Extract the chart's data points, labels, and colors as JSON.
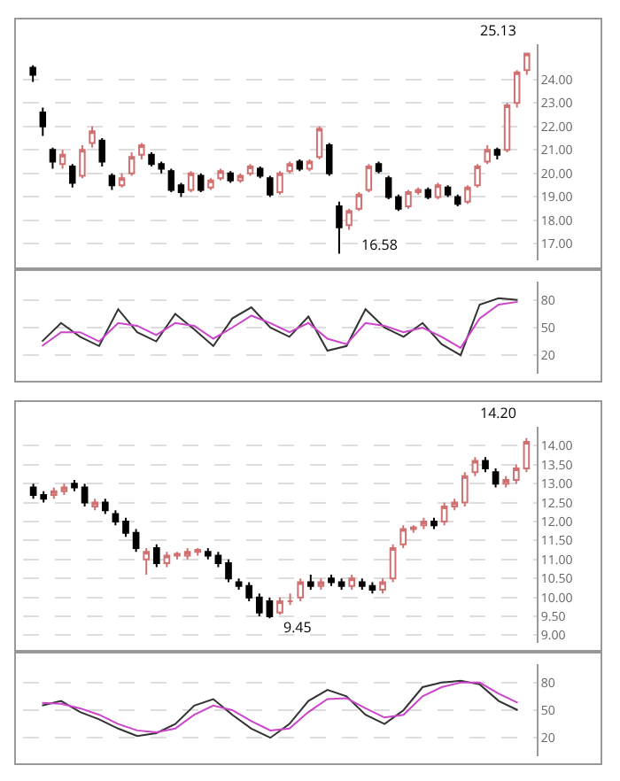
{
  "chart_data": [
    {
      "type": "candlestick",
      "categories": [
        null,
        null,
        null,
        null,
        null,
        null,
        null,
        null,
        null,
        null,
        null,
        null,
        null,
        null,
        null,
        null,
        null,
        null,
        null,
        null,
        null,
        null,
        null,
        null,
        null,
        null,
        null,
        null,
        null,
        null,
        null,
        null,
        null,
        null,
        null,
        null,
        null,
        null,
        null,
        null,
        null,
        null,
        null,
        null,
        null,
        null,
        null,
        null,
        null,
        null,
        null
      ],
      "ohlc": [
        [
          24.5,
          24.6,
          23.9,
          24.2
        ],
        [
          22.6,
          22.8,
          21.6,
          22.0
        ],
        [
          21.0,
          21.1,
          20.2,
          20.5
        ],
        [
          20.4,
          21.0,
          20.2,
          20.8
        ],
        [
          20.3,
          20.4,
          19.4,
          19.6
        ],
        [
          19.9,
          21.2,
          19.8,
          21.0
        ],
        [
          21.3,
          22.0,
          21.1,
          21.8
        ],
        [
          21.4,
          21.5,
          20.3,
          20.5
        ],
        [
          19.9,
          20.0,
          19.3,
          19.5
        ],
        [
          19.5,
          20.0,
          19.4,
          19.8
        ],
        [
          20.0,
          20.9,
          19.9,
          20.7
        ],
        [
          20.8,
          21.3,
          20.6,
          21.2
        ],
        [
          20.8,
          20.9,
          20.3,
          20.4
        ],
        [
          20.4,
          20.5,
          20.0,
          20.2
        ],
        [
          20.1,
          20.2,
          19.2,
          19.3
        ],
        [
          19.5,
          19.6,
          19.0,
          19.2
        ],
        [
          19.3,
          20.1,
          19.2,
          20.0
        ],
        [
          19.9,
          20.0,
          19.2,
          19.3
        ],
        [
          19.4,
          19.8,
          19.3,
          19.7
        ],
        [
          19.8,
          20.2,
          19.7,
          20.1
        ],
        [
          20.0,
          20.1,
          19.6,
          19.7
        ],
        [
          19.7,
          20.0,
          19.6,
          19.9
        ],
        [
          20.0,
          20.4,
          19.9,
          20.3
        ],
        [
          20.2,
          20.3,
          19.8,
          19.9
        ],
        [
          19.8,
          19.9,
          19.0,
          19.1
        ],
        [
          19.2,
          20.1,
          19.1,
          20.0
        ],
        [
          20.1,
          20.5,
          20.0,
          20.4
        ],
        [
          20.5,
          20.6,
          20.1,
          20.2
        ],
        [
          20.2,
          20.6,
          20.1,
          20.5
        ],
        [
          20.7,
          22.0,
          20.6,
          21.9
        ],
        [
          21.2,
          21.3,
          19.9,
          20.0
        ],
        [
          18.6,
          18.8,
          16.58,
          17.7
        ],
        [
          17.8,
          18.5,
          17.6,
          18.4
        ],
        [
          18.5,
          19.2,
          18.4,
          19.1
        ],
        [
          19.3,
          20.4,
          19.2,
          20.3
        ],
        [
          20.4,
          20.5,
          20.0,
          20.1
        ],
        [
          19.8,
          19.9,
          18.9,
          19.0
        ],
        [
          19.0,
          19.1,
          18.4,
          18.5
        ],
        [
          18.6,
          19.3,
          18.5,
          19.2
        ],
        [
          19.2,
          19.4,
          19.1,
          19.3
        ],
        [
          19.3,
          19.4,
          18.9,
          19.0
        ],
        [
          19.0,
          19.6,
          18.9,
          19.5
        ],
        [
          19.4,
          19.5,
          19.0,
          19.1
        ],
        [
          19.0,
          19.1,
          18.6,
          18.7
        ],
        [
          18.8,
          19.5,
          18.7,
          19.4
        ],
        [
          19.5,
          20.4,
          19.4,
          20.3
        ],
        [
          20.5,
          21.2,
          20.4,
          21.0
        ],
        [
          21.0,
          21.1,
          20.6,
          20.8
        ],
        [
          21.0,
          23.0,
          20.9,
          22.9
        ],
        [
          23.0,
          24.4,
          22.8,
          24.3
        ],
        [
          24.4,
          25.13,
          24.2,
          25.1
        ]
      ],
      "ylim": [
        16.3,
        25.5
      ],
      "yticks": [
        {
          "value": 17,
          "label": "17.00"
        },
        {
          "value": 18,
          "label": "18.00"
        },
        {
          "value": 19,
          "label": "19.00"
        },
        {
          "value": 20,
          "label": "20.00"
        },
        {
          "value": 21,
          "label": "21.00"
        },
        {
          "value": 22,
          "label": "22.00"
        },
        {
          "value": 23,
          "label": "23.00"
        },
        {
          "value": 24,
          "label": "24.00"
        }
      ],
      "grid": "y",
      "tick_labels": "y",
      "annotations": [
        "25.13",
        "16.58"
      ]
    },
    {
      "type": "line",
      "categories": [
        null,
        null,
        null,
        null,
        null,
        null,
        null,
        null,
        null,
        null,
        null,
        null,
        null,
        null,
        null,
        null,
        null,
        null,
        null,
        null,
        null,
        null,
        null,
        null,
        null,
        null
      ],
      "series": [
        {
          "color": "#333333",
          "values": [
            35,
            55,
            40,
            30,
            70,
            45,
            35,
            65,
            48,
            30,
            60,
            72,
            50,
            40,
            62,
            25,
            30,
            70,
            50,
            40,
            55,
            32,
            20,
            75,
            82,
            80
          ]
        },
        {
          "color": "#cc44cc",
          "values": [
            30,
            45,
            45,
            35,
            55,
            52,
            42,
            55,
            52,
            38,
            50,
            63,
            55,
            45,
            55,
            38,
            32,
            55,
            52,
            45,
            50,
            40,
            28,
            60,
            75,
            78
          ]
        }
      ],
      "ylim": [
        0,
        100
      ],
      "yticks": [
        20,
        50,
        80
      ],
      "grid": "y",
      "tick_labels": "y",
      "marker": "none"
    },
    {
      "type": "candlestick",
      "categories": [
        null,
        null,
        null,
        null,
        null,
        null,
        null,
        null,
        null,
        null,
        null,
        null,
        null,
        null,
        null,
        null,
        null,
        null,
        null,
        null,
        null,
        null,
        null,
        null,
        null,
        null,
        null,
        null,
        null,
        null,
        null,
        null,
        null,
        null,
        null,
        null,
        null,
        null,
        null,
        null,
        null,
        null,
        null,
        null,
        null,
        null,
        null,
        null,
        null
      ],
      "ohlc": [
        [
          12.9,
          13.0,
          12.6,
          12.7
        ],
        [
          12.7,
          12.8,
          12.5,
          12.6
        ],
        [
          12.7,
          12.9,
          12.6,
          12.8
        ],
        [
          12.8,
          13.0,
          12.7,
          12.9
        ],
        [
          13.0,
          13.1,
          12.8,
          12.9
        ],
        [
          12.9,
          13.0,
          12.4,
          12.5
        ],
        [
          12.4,
          12.6,
          12.3,
          12.5
        ],
        [
          12.5,
          12.6,
          12.2,
          12.3
        ],
        [
          12.2,
          12.3,
          11.9,
          12.0
        ],
        [
          12.0,
          12.1,
          11.6,
          11.7
        ],
        [
          11.7,
          11.8,
          11.2,
          11.3
        ],
        [
          11.0,
          11.3,
          10.6,
          11.2
        ],
        [
          11.3,
          11.4,
          10.8,
          10.9
        ],
        [
          10.9,
          11.2,
          10.8,
          11.1
        ],
        [
          11.1,
          11.2,
          11.0,
          11.15
        ],
        [
          11.1,
          11.3,
          11.0,
          11.2
        ],
        [
          11.2,
          11.3,
          11.1,
          11.25
        ],
        [
          11.2,
          11.3,
          11.0,
          11.1
        ],
        [
          11.1,
          11.2,
          10.8,
          10.9
        ],
        [
          10.9,
          11.0,
          10.4,
          10.5
        ],
        [
          10.4,
          10.5,
          10.2,
          10.3
        ],
        [
          10.3,
          10.4,
          9.9,
          10.0
        ],
        [
          10.0,
          10.1,
          9.5,
          9.6
        ],
        [
          9.9,
          10.0,
          9.45,
          9.5
        ],
        [
          9.6,
          10.0,
          9.55,
          9.9
        ],
        [
          9.9,
          10.1,
          9.8,
          9.9
        ],
        [
          10.0,
          10.5,
          9.9,
          10.4
        ],
        [
          10.4,
          10.6,
          10.2,
          10.3
        ],
        [
          10.3,
          10.5,
          10.2,
          10.4
        ],
        [
          10.5,
          10.6,
          10.3,
          10.4
        ],
        [
          10.4,
          10.5,
          10.2,
          10.3
        ],
        [
          10.3,
          10.6,
          10.2,
          10.5
        ],
        [
          10.4,
          10.5,
          10.2,
          10.3
        ],
        [
          10.3,
          10.4,
          10.1,
          10.2
        ],
        [
          10.2,
          10.5,
          10.1,
          10.4
        ],
        [
          10.5,
          11.4,
          10.4,
          11.3
        ],
        [
          11.4,
          11.9,
          11.3,
          11.8
        ],
        [
          11.8,
          11.9,
          11.7,
          11.85
        ],
        [
          11.9,
          12.1,
          11.8,
          12.0
        ],
        [
          12.0,
          12.1,
          11.8,
          11.9
        ],
        [
          12.0,
          12.5,
          11.9,
          12.4
        ],
        [
          12.4,
          12.6,
          12.3,
          12.5
        ],
        [
          12.5,
          13.3,
          12.4,
          13.2
        ],
        [
          13.3,
          13.7,
          13.2,
          13.6
        ],
        [
          13.6,
          13.7,
          13.3,
          13.4
        ],
        [
          13.3,
          13.4,
          12.9,
          13.0
        ],
        [
          13.0,
          13.2,
          12.9,
          13.1
        ],
        [
          13.1,
          13.5,
          13.0,
          13.4
        ],
        [
          13.4,
          14.2,
          13.3,
          14.1
        ]
      ],
      "ylim": [
        8.8,
        14.5
      ],
      "yticks": [
        {
          "value": 9,
          "label": "9.00"
        },
        {
          "value": 9.5,
          "label": "9.50"
        },
        {
          "value": 10,
          "label": "10.00"
        },
        {
          "value": 10.5,
          "label": "10.50"
        },
        {
          "value": 11,
          "label": "11.00"
        },
        {
          "value": 11.5,
          "label": "11.50"
        },
        {
          "value": 12,
          "label": "12.00"
        },
        {
          "value": 12.5,
          "label": "12.50"
        },
        {
          "value": 13,
          "label": "13.00"
        },
        {
          "value": 13.5,
          "label": "13.50"
        },
        {
          "value": 14,
          "label": "14.00"
        }
      ],
      "grid": "y",
      "tick_labels": "y",
      "annotations": [
        "14.20",
        "9.45"
      ]
    },
    {
      "type": "line",
      "categories": [
        null,
        null,
        null,
        null,
        null,
        null,
        null,
        null,
        null,
        null,
        null,
        null,
        null,
        null,
        null,
        null,
        null,
        null,
        null,
        null,
        null,
        null,
        null,
        null,
        null,
        null
      ],
      "series": [
        {
          "color": "#333333",
          "values": [
            55,
            60,
            48,
            40,
            30,
            22,
            25,
            35,
            55,
            62,
            45,
            30,
            20,
            35,
            60,
            72,
            65,
            45,
            35,
            50,
            75,
            80,
            82,
            78,
            60,
            50
          ]
        },
        {
          "color": "#cc44cc",
          "values": [
            58,
            57,
            52,
            45,
            35,
            28,
            26,
            30,
            45,
            55,
            50,
            38,
            28,
            30,
            48,
            62,
            63,
            52,
            42,
            45,
            65,
            75,
            80,
            80,
            68,
            58
          ]
        }
      ],
      "ylim": [
        0,
        100
      ],
      "yticks": [
        20,
        50,
        80
      ],
      "grid": "y",
      "tick_labels": "y",
      "marker": "none"
    }
  ]
}
